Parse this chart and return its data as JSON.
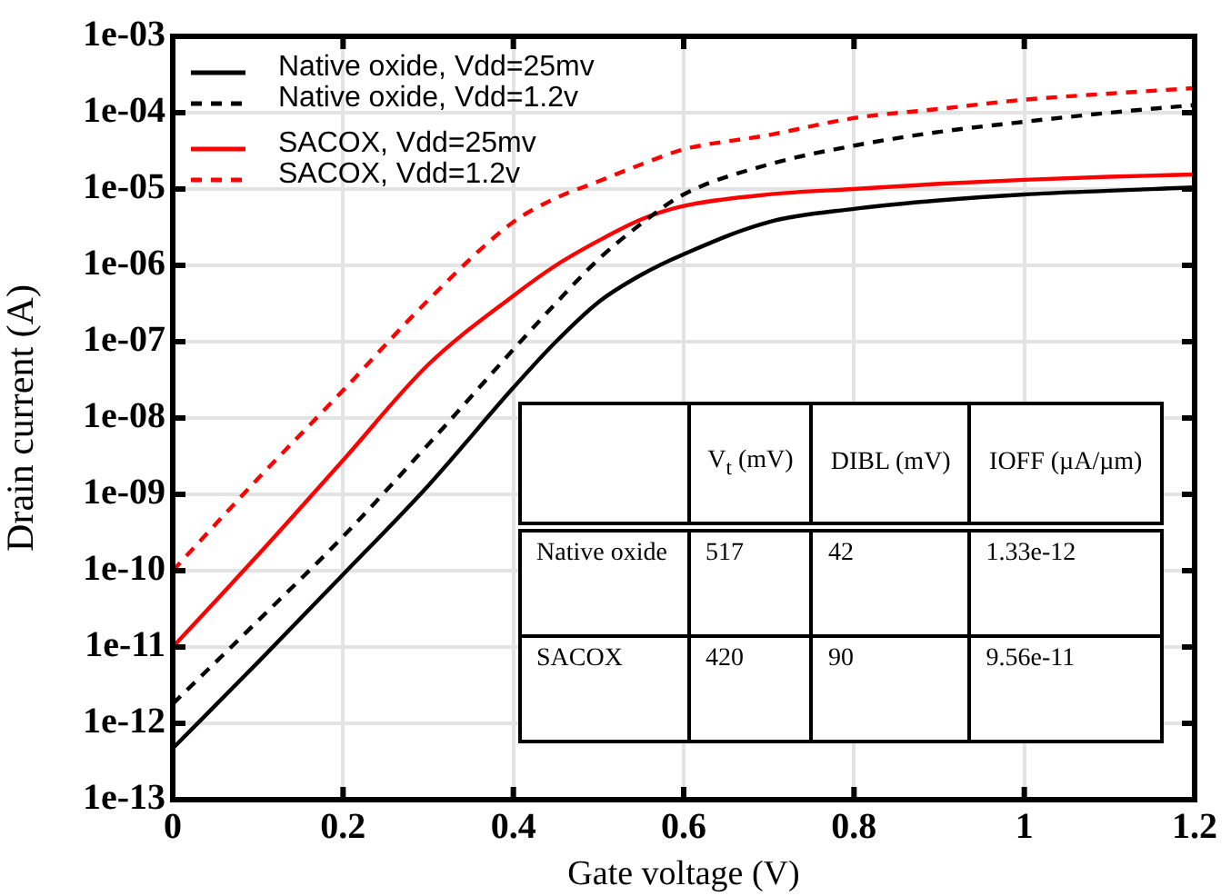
{
  "chart_data": {
    "type": "line",
    "xlabel": "Gate voltage (V)",
    "ylabel": "Drain current (A)",
    "x": [
      0,
      0.1,
      0.2,
      0.3,
      0.4,
      0.45,
      0.5,
      0.55,
      0.6,
      0.7,
      0.8,
      0.9,
      1.0,
      1.1,
      1.2
    ],
    "series": [
      {
        "name": "Native oxide, Vdd=25mv",
        "color": "#000000",
        "line_style": "solid",
        "values": [
          4.7e-13,
          6.3e-12,
          8.9e-11,
          1.3e-09,
          2.5e-08,
          1e-07,
          3.3e-07,
          7.5e-07,
          1.4e-06,
          3.7e-06,
          5.5e-06,
          7.1e-06,
          8.5e-06,
          9.5e-06,
          1.05e-05
        ]
      },
      {
        "name": "Native oxide, Vdd=1.2v",
        "color": "#000000",
        "line_style": "dashed",
        "values": [
          1.8e-12,
          2.2e-11,
          2.8e-10,
          4.5e-09,
          7.9e-08,
          3.2e-07,
          1.2e-06,
          3.5e-06,
          8.5e-06,
          2.1e-05,
          3.7e-05,
          5.6e-05,
          7.6e-05,
          0.0001,
          0.000126
        ]
      },
      {
        "name": "SACOX, Vdd=25mv",
        "color": "#ff0000",
        "line_style": "solid",
        "values": [
          1e-11,
          1.6e-10,
          2.8e-09,
          5e-08,
          4e-07,
          1e-06,
          2.1e-06,
          4e-06,
          6e-06,
          8.5e-06,
          1e-05,
          1.17e-05,
          1.32e-05,
          1.45e-05,
          1.55e-05
        ]
      },
      {
        "name": "SACOX, Vdd=1.2v",
        "color": "#ff0000",
        "line_style": "dashed",
        "values": [
          1e-10,
          1.6e-09,
          2.3e-08,
          3.5e-07,
          3.7e-06,
          7.6e-06,
          1.26e-05,
          2.1e-05,
          3.3e-05,
          5.1e-05,
          8.5e-05,
          0.000112,
          0.000148,
          0.000178,
          0.00021
        ]
      }
    ],
    "log": "y",
    "grid": true,
    "legend": "top left",
    "marker": "none",
    "xlim": [
      0,
      1.2
    ],
    "xticks": [
      0,
      0.2,
      0.4,
      0.6,
      0.8,
      1,
      1.2
    ],
    "ylim": [
      1e-13,
      0.001
    ],
    "yticks": [
      {
        "value": 1e-13,
        "label": "1e-13"
      },
      {
        "value": 1e-12,
        "label": "1e-12"
      },
      {
        "value": 1e-11,
        "label": "1e-11"
      },
      {
        "value": 1e-10,
        "label": "1e-10"
      },
      {
        "value": 1e-09,
        "label": "1e-09"
      },
      {
        "value": 1e-08,
        "label": "1e-08"
      },
      {
        "value": 1e-07,
        "label": "1e-07"
      },
      {
        "value": 1e-06,
        "label": "1e-06"
      },
      {
        "value": 1e-05,
        "label": "1e-05"
      },
      {
        "value": 0.0001,
        "label": "1e-04"
      },
      {
        "value": 0.001,
        "label": "1e-03"
      }
    ],
    "annotations": [
      "V$_{t}$ (mV)",
      "DIBL (mV)",
      "IOFF (µA/µm)",
      "Native oxide",
      "517",
      "42",
      "1.33e-12",
      "SACOX",
      "420",
      "90",
      "9.56e-11"
    ]
  }
}
